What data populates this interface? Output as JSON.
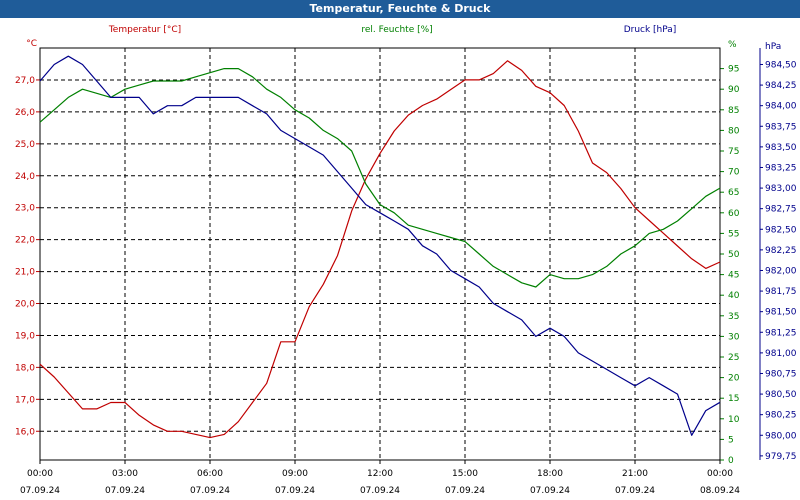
{
  "window": {
    "title": "Temperatur, Feuchte & Druck"
  },
  "chart_data": {
    "type": "line",
    "title": "Temperatur, Feuchte & Druck",
    "grid": true,
    "x_ticks": [
      {
        "time": "00:00",
        "date": "07.09.24"
      },
      {
        "time": "03:00",
        "date": "07.09.24"
      },
      {
        "time": "06:00",
        "date": "07.09.24"
      },
      {
        "time": "09:00",
        "date": "07.09.24"
      },
      {
        "time": "12:00",
        "date": "07.09.24"
      },
      {
        "time": "15:00",
        "date": "07.09.24"
      },
      {
        "time": "18:00",
        "date": "07.09.24"
      },
      {
        "time": "21:00",
        "date": "07.09.24"
      },
      {
        "time": "00:00",
        "date": "08.09.24"
      }
    ],
    "xlim_hours": [
      0,
      24
    ],
    "axes": {
      "temperature": {
        "unit": "°C",
        "ylim": [
          15.1,
          28.0
        ],
        "ticks": [
          "16,0",
          "17,0",
          "18,0",
          "19,0",
          "20,0",
          "21,0",
          "22,0",
          "23,0",
          "24,0",
          "25,0",
          "26,0",
          "27,0"
        ],
        "color": "#c00000"
      },
      "humidity": {
        "unit": "%",
        "ylim": [
          0,
          100
        ],
        "ticks": [
          "0",
          "5",
          "10",
          "15",
          "20",
          "25",
          "30",
          "35",
          "40",
          "45",
          "50",
          "55",
          "60",
          "65",
          "70",
          "75",
          "80",
          "85",
          "90",
          "95"
        ],
        "color": "#008000"
      },
      "pressure": {
        "unit": "hPa",
        "ylim": [
          979.7,
          984.7
        ],
        "ticks": [
          "979,75",
          "980,00",
          "980,25",
          "980,50",
          "980,75",
          "981,00",
          "981,25",
          "981,50",
          "981,75",
          "982,00",
          "982,25",
          "982,50",
          "982,75",
          "983,00",
          "983,25",
          "983,50",
          "983,75",
          "984,00",
          "984,25",
          "984,50"
        ],
        "color": "#00008b"
      }
    },
    "series": [
      {
        "name": "Temperatur [°C]",
        "axis": "temperature",
        "color": "#c00000",
        "x": [
          0,
          0.5,
          1,
          1.5,
          2,
          2.5,
          3,
          3.5,
          4,
          4.5,
          5,
          5.5,
          6,
          6.5,
          7,
          7.5,
          8,
          8.5,
          9,
          9.5,
          10,
          10.5,
          11,
          11.5,
          12,
          12.5,
          13,
          13.5,
          14,
          14.5,
          15,
          15.5,
          16,
          16.5,
          17,
          17.5,
          18,
          18.5,
          19,
          19.5,
          20,
          20.5,
          21,
          21.5,
          22,
          22.5,
          23,
          23.5,
          24
        ],
        "values": [
          18.1,
          17.7,
          17.2,
          16.7,
          16.7,
          16.9,
          16.9,
          16.5,
          16.2,
          16.0,
          16.0,
          15.9,
          15.8,
          15.9,
          16.3,
          16.9,
          17.5,
          18.8,
          18.8,
          19.9,
          20.6,
          21.5,
          22.9,
          23.9,
          24.7,
          25.4,
          25.9,
          26.2,
          26.4,
          26.7,
          27.0,
          27.0,
          27.2,
          27.6,
          27.3,
          26.8,
          26.6,
          26.2,
          25.4,
          24.4,
          24.1,
          23.6,
          23.0,
          22.6,
          22.2,
          21.8,
          21.4,
          21.1,
          21.3
        ]
      },
      {
        "name": "rel. Feuchte [%]",
        "axis": "humidity",
        "color": "#008000",
        "x": [
          0,
          0.5,
          1,
          1.5,
          2,
          2.5,
          3,
          3.5,
          4,
          4.5,
          5,
          5.5,
          6,
          6.5,
          7,
          7.5,
          8,
          8.5,
          9,
          9.5,
          10,
          10.5,
          11,
          11.5,
          12,
          12.5,
          13,
          13.5,
          14,
          14.5,
          15,
          15.5,
          16,
          16.5,
          17,
          17.5,
          18,
          18.5,
          19,
          19.5,
          20,
          20.5,
          21,
          21.5,
          22,
          22.5,
          23,
          23.5,
          24
        ],
        "values": [
          82,
          85,
          88,
          90,
          89,
          88,
          90,
          91,
          92,
          92,
          92,
          93,
          94,
          95,
          95,
          93,
          90,
          88,
          85,
          83,
          80,
          78,
          75,
          67,
          62,
          60,
          57,
          56,
          55,
          54,
          53,
          50,
          47,
          45,
          43,
          42,
          45,
          44,
          44,
          45,
          47,
          50,
          52,
          55,
          56,
          58,
          61,
          64,
          66
        ]
      },
      {
        "name": "Druck [hPa]",
        "axis": "pressure",
        "color": "#00008b",
        "x": [
          0,
          0.5,
          1,
          1.5,
          2,
          2.5,
          3,
          3.5,
          4,
          4.5,
          5,
          5.5,
          6,
          6.5,
          7,
          7.5,
          8,
          8.5,
          9,
          9.5,
          10,
          10.5,
          11,
          11.5,
          12,
          12.5,
          13,
          13.5,
          14,
          14.5,
          15,
          15.5,
          16,
          16.5,
          17,
          17.5,
          18,
          18.5,
          19,
          19.5,
          20,
          20.5,
          21,
          21.5,
          22,
          22.5,
          23,
          23.5,
          24
        ],
        "values": [
          984.3,
          984.5,
          984.6,
          984.5,
          984.3,
          984.1,
          984.1,
          984.1,
          983.9,
          984.0,
          984.0,
          984.1,
          984.1,
          984.1,
          984.1,
          984.0,
          983.9,
          983.7,
          983.6,
          983.5,
          983.4,
          983.2,
          983.0,
          982.8,
          982.7,
          982.6,
          982.5,
          982.3,
          982.2,
          982.0,
          981.9,
          981.8,
          981.6,
          981.5,
          981.4,
          981.2,
          981.3,
          981.2,
          981.0,
          980.9,
          980.8,
          980.7,
          980.6,
          980.7,
          980.6,
          980.5,
          980.0,
          980.3,
          980.4
        ]
      }
    ]
  }
}
